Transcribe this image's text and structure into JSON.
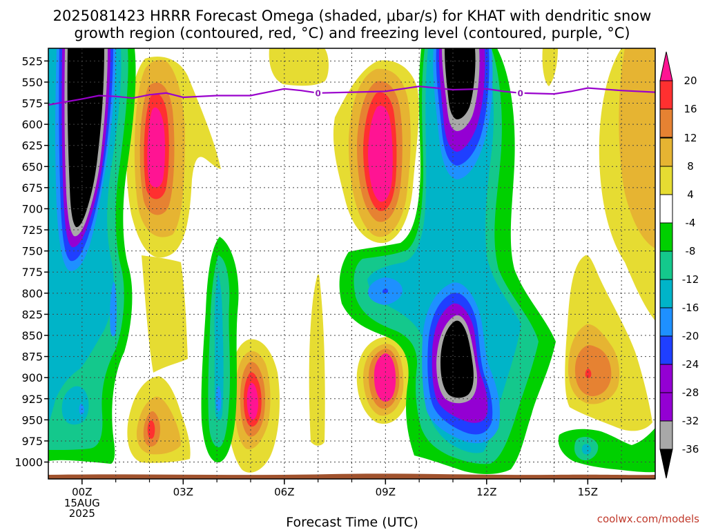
{
  "title_line1": "2025081423 HRRR Forecast Omega (shaded, μbar/s) for KHAT with dendritic snow",
  "title_line2": "growth region (contoured, red, °C) and freezing level (contoured, purple, °C)",
  "x_label": "Forecast Time (UTC)",
  "credit": "coolwx.com/models",
  "freezing_level_label": "0",
  "colors": {
    "black": "#000000",
    "gray": "#a8a8a8",
    "purple": "#9400d3",
    "blue": "#1f3fff",
    "lightblue": "#1e90ff",
    "cyan": "#00b4c8",
    "teal": "#14c88c",
    "green": "#00d000",
    "white": "#ffffff",
    "yellow": "#e6dc32",
    "gold": "#e6b432",
    "orange": "#e68232",
    "red": "#ff3030",
    "magenta": "#ff1493",
    "freezing": "#9900cc",
    "ground": "#a0522d"
  },
  "chart_data": {
    "type": "heatmap",
    "title": "2025081423 HRRR Forecast Omega (shaded, μbar/s) for KHAT with dendritic snow growth region (contoured, red, °C) and freezing level (contoured, purple, °C)",
    "xlabel": "Forecast Time (UTC)",
    "ylabel": "",
    "x_ticks": [
      "00Z",
      "03Z",
      "06Z",
      "09Z",
      "12Z",
      "15Z"
    ],
    "x_tick_hours": [
      0,
      3,
      6,
      9,
      12,
      15
    ],
    "x_date_sub": [
      "15AUG",
      "2025"
    ],
    "xlim_hours": [
      -1,
      17
    ],
    "y_ticks": [
      525,
      550,
      575,
      600,
      625,
      650,
      675,
      700,
      725,
      750,
      775,
      800,
      825,
      850,
      875,
      900,
      925,
      950,
      975,
      1000
    ],
    "ylim_hPa": [
      1020,
      510
    ],
    "colorbar_ticks": [
      20,
      16,
      12,
      8,
      4,
      -4,
      -8,
      -12,
      -16,
      -20,
      -24,
      -28,
      -32,
      -36
    ],
    "colorbar_bins": [
      {
        "lo": 20,
        "hi": 24,
        "color": "#ff1493"
      },
      {
        "lo": 16,
        "hi": 20,
        "color": "#ff3030"
      },
      {
        "lo": 12,
        "hi": 16,
        "color": "#e68232"
      },
      {
        "lo": 8,
        "hi": 12,
        "color": "#e6b432"
      },
      {
        "lo": 4,
        "hi": 8,
        "color": "#e6dc32"
      },
      {
        "lo": -4,
        "hi": 4,
        "color": "#ffffff"
      },
      {
        "lo": -8,
        "hi": -4,
        "color": "#00d000"
      },
      {
        "lo": -12,
        "hi": -8,
        "color": "#14c88c"
      },
      {
        "lo": -16,
        "hi": -12,
        "color": "#00b4c8"
      },
      {
        "lo": -20,
        "hi": -16,
        "color": "#1e90ff"
      },
      {
        "lo": -24,
        "hi": -20,
        "color": "#1f3fff"
      },
      {
        "lo": -28,
        "hi": -24,
        "color": "#9400d3"
      },
      {
        "lo": -32,
        "hi": -28,
        "color": "#9400d3"
      },
      {
        "lo": -36,
        "hi": -32,
        "color": "#a8a8a8"
      },
      {
        "lo": -40,
        "hi": -36,
        "color": "#000000"
      }
    ],
    "freezing_level_hPa": {
      "hours": [
        -1,
        0,
        0.5,
        1,
        1.5,
        2,
        2.5,
        3,
        4,
        5,
        5.5,
        6,
        6.5,
        7,
        8,
        9,
        9.5,
        10,
        10.5,
        11,
        12,
        12.5,
        13,
        14,
        14.5,
        15,
        16,
        17
      ],
      "values": [
        577,
        570,
        566,
        567,
        569,
        565,
        563,
        568,
        566,
        566,
        562,
        558,
        560,
        563,
        562,
        561,
        558,
        555,
        557,
        559,
        558,
        561,
        563,
        564,
        561,
        557,
        560,
        562
      ]
    },
    "features": [
      {
        "label": "upper ascent core 00Z",
        "hour": 0.05,
        "hPa": 610,
        "min_value": -36
      },
      {
        "label": "low-level ascent 00Z",
        "hour": 0,
        "hPa": 915,
        "min_value": -16
      },
      {
        "label": "upper descent 02Z",
        "hour": 2,
        "hPa": 615,
        "max_value": 20
      },
      {
        "label": "low descent 02Z",
        "hour": 2,
        "hPa": 945,
        "max_value": 16
      },
      {
        "label": "ascent 04Z",
        "hour": 4,
        "hPa": 860,
        "min_value": -16
      },
      {
        "label": "descent 05Z",
        "hour": 5,
        "hPa": 905,
        "max_value": 20
      },
      {
        "label": "upper descent 09Z",
        "hour": 9,
        "hPa": 620,
        "max_value": 20
      },
      {
        "label": "low descent 09Z",
        "hour": 9,
        "hPa": 880,
        "max_value": 20
      },
      {
        "label": "mid ascent 09Z",
        "hour": 9,
        "hPa": 775,
        "min_value": -20
      },
      {
        "label": "upper ascent core 11Z",
        "hour": 11,
        "hPa": 560,
        "min_value": -36
      },
      {
        "label": "low ascent core 11Z",
        "hour": 11,
        "hPa": 860,
        "min_value": -36
      },
      {
        "label": "low descent 15Z",
        "hour": 15,
        "hPa": 865,
        "max_value": 16
      },
      {
        "label": "low ascent 15Z",
        "hour": 15,
        "hPa": 975,
        "min_value": -12
      }
    ]
  }
}
